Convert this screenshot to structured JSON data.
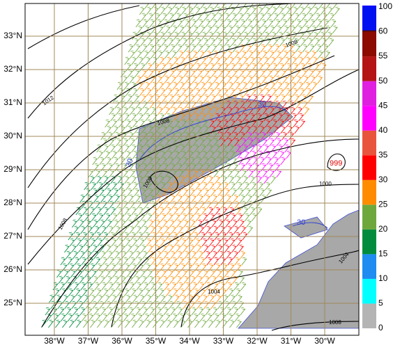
{
  "map": {
    "lat_labels": [
      "33°N",
      "32°N",
      "31°N",
      "30°N",
      "29°N",
      "28°N",
      "27°N",
      "26°N",
      "25°N"
    ],
    "lon_labels": [
      "38°W",
      "37°W",
      "36°W",
      "35°W",
      "34°W",
      "33°W",
      "32°W",
      "31°W",
      "30°W"
    ],
    "contour_labels": [
      "1012",
      "1008",
      "1008",
      "1008",
      "1004",
      "1004",
      "1000",
      "1000",
      "999",
      "1008",
      "30",
      "30",
      "30"
    ]
  },
  "colorbar": {
    "ticks": [
      0,
      5,
      10,
      15,
      20,
      25,
      30,
      35,
      40,
      45,
      50,
      55,
      60,
      100
    ],
    "colors": [
      "#b4b4b4",
      "#00ffff",
      "#1e8cf0",
      "#008c3c",
      "#6ea83c",
      "#ff8c00",
      "#ff0000",
      "#e8553c",
      "#ff00ff",
      "#e020e0",
      "#b41414",
      "#8c0a00",
      "#500800"
    ]
  }
}
